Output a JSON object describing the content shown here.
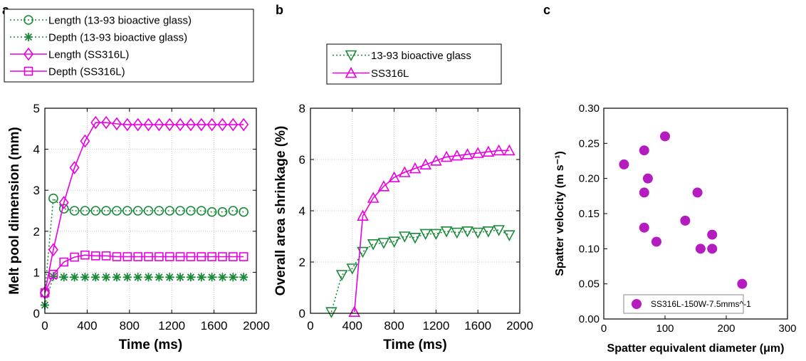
{
  "colors": {
    "green": "#1a8a3a",
    "magenta": "#e800e0",
    "purple": "#b41cc0"
  },
  "panels": {
    "a": "a",
    "b": "b",
    "c": "c"
  },
  "chart_data": [
    {
      "id": "a",
      "type": "line",
      "title": "",
      "xlabel": "Time (ms)",
      "ylabel": "Melt pool dimension (mm)",
      "xlim": [
        0,
        2000
      ],
      "ylim": [
        0,
        5
      ],
      "xticks": [
        "0",
        "400",
        "800",
        "1200",
        "1600",
        "2000"
      ],
      "yticks": [
        "0",
        "1",
        "2",
        "3",
        "4",
        "5"
      ],
      "grid": true,
      "legend_placement": "above plot",
      "series": [
        {
          "name": "Length (13-93 bioactive glass)",
          "color": "#1a8a3a",
          "line": "dotted",
          "marker": "circle",
          "x": [
            0,
            80,
            180,
            280,
            380,
            480,
            580,
            680,
            780,
            880,
            980,
            1080,
            1180,
            1280,
            1380,
            1480,
            1580,
            1680,
            1780,
            1880
          ],
          "y": [
            0.5,
            2.8,
            2.55,
            2.5,
            2.5,
            2.5,
            2.5,
            2.5,
            2.5,
            2.5,
            2.5,
            2.5,
            2.5,
            2.5,
            2.5,
            2.5,
            2.47,
            2.47,
            2.5,
            2.47
          ]
        },
        {
          "name": "Depth (13-93 bioactive glass)",
          "color": "#1a8a3a",
          "line": "dotted",
          "marker": "star",
          "x": [
            0,
            80,
            180,
            280,
            380,
            480,
            580,
            680,
            780,
            880,
            980,
            1080,
            1180,
            1280,
            1380,
            1480,
            1580,
            1680,
            1780,
            1880
          ],
          "y": [
            0.2,
            0.9,
            0.88,
            0.88,
            0.88,
            0.88,
            0.88,
            0.88,
            0.88,
            0.88,
            0.88,
            0.88,
            0.88,
            0.88,
            0.88,
            0.88,
            0.88,
            0.88,
            0.88,
            0.88
          ]
        },
        {
          "name": "Length (SS316L)",
          "color": "#e800e0",
          "line": "solid",
          "marker": "diamond",
          "x": [
            0,
            80,
            180,
            280,
            380,
            480,
            580,
            680,
            780,
            880,
            980,
            1080,
            1180,
            1280,
            1380,
            1480,
            1580,
            1680,
            1780,
            1880
          ],
          "y": [
            0.5,
            1.55,
            2.7,
            3.55,
            4.2,
            4.65,
            4.65,
            4.62,
            4.6,
            4.6,
            4.6,
            4.6,
            4.6,
            4.6,
            4.6,
            4.6,
            4.6,
            4.6,
            4.6,
            4.6
          ]
        },
        {
          "name": "Depth (SS316L)",
          "color": "#e800e0",
          "line": "solid",
          "marker": "square",
          "x": [
            0,
            80,
            180,
            280,
            380,
            480,
            580,
            680,
            780,
            880,
            980,
            1080,
            1180,
            1280,
            1380,
            1480,
            1580,
            1680,
            1780,
            1880
          ],
          "y": [
            0.5,
            0.95,
            1.25,
            1.37,
            1.42,
            1.4,
            1.4,
            1.38,
            1.38,
            1.38,
            1.38,
            1.38,
            1.38,
            1.38,
            1.38,
            1.38,
            1.38,
            1.38,
            1.38,
            1.38
          ]
        }
      ]
    },
    {
      "id": "b",
      "type": "line",
      "title": "",
      "xlabel": "Time (ms)",
      "ylabel": "Overall area shrinkage (%)",
      "xlim": [
        0,
        2000
      ],
      "ylim": [
        0,
        8
      ],
      "xticks": [
        "0",
        "400",
        "800",
        "1200",
        "1600",
        "2000"
      ],
      "yticks": [
        "0",
        "2",
        "4",
        "6",
        "8"
      ],
      "grid": true,
      "legend_placement": "above plot",
      "series": [
        {
          "name": "13-93 bioactive glass",
          "color": "#1a8a3a",
          "line": "dotted",
          "marker": "triangle-down",
          "x": [
            200,
            300,
            400,
            500,
            600,
            700,
            800,
            900,
            1000,
            1100,
            1200,
            1300,
            1400,
            1500,
            1600,
            1700,
            1800,
            1900
          ],
          "y": [
            0.05,
            1.5,
            1.75,
            2.4,
            2.7,
            2.75,
            2.8,
            3.0,
            2.95,
            3.1,
            3.1,
            3.2,
            3.15,
            3.2,
            3.15,
            3.2,
            3.25,
            3.05
          ]
        },
        {
          "name": "SS316L",
          "color": "#e800e0",
          "line": "solid",
          "marker": "triangle-up",
          "x": [
            420,
            500,
            600,
            700,
            800,
            900,
            1000,
            1100,
            1200,
            1300,
            1400,
            1500,
            1600,
            1700,
            1800,
            1900
          ],
          "y": [
            0.05,
            3.8,
            4.5,
            4.95,
            5.3,
            5.5,
            5.65,
            5.8,
            5.95,
            6.1,
            6.15,
            6.2,
            6.25,
            6.3,
            6.35,
            6.35
          ]
        }
      ]
    },
    {
      "id": "c",
      "type": "scatter",
      "title": "",
      "xlabel": "Spatter equivalent diameter (μm)",
      "ylabel": "Spatter velocity (m s⁻¹)",
      "xlim": [
        0,
        300
      ],
      "ylim": [
        0,
        0.3
      ],
      "xticks": [
        "0",
        "100",
        "200",
        "300"
      ],
      "yticks": [
        "0.00",
        "0.05",
        "0.10",
        "0.15",
        "0.20",
        "0.25",
        "0.30"
      ],
      "grid": false,
      "legend_placement": "bottom-center",
      "series": [
        {
          "name": "SS316L-150W-7.5mms^-1",
          "color": "#b41cc0",
          "marker": "filled-circle",
          "x": [
            33,
            66,
            66,
            66,
            72,
            86,
            100,
            133,
            153,
            158,
            177,
            177,
            226
          ],
          "y": [
            0.22,
            0.24,
            0.18,
            0.13,
            0.2,
            0.11,
            0.26,
            0.14,
            0.18,
            0.1,
            0.12,
            0.1,
            0.05
          ]
        }
      ]
    }
  ]
}
